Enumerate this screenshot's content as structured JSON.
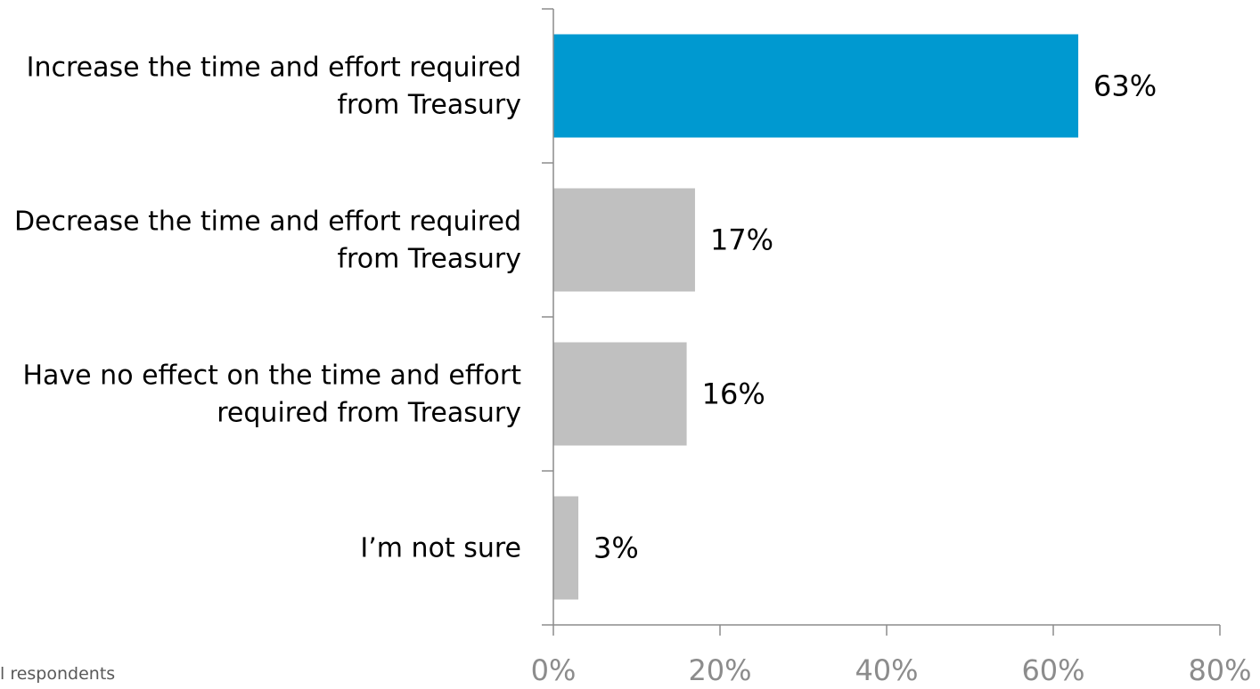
{
  "chart_data": {
    "type": "bar",
    "orientation": "horizontal",
    "categories": [
      [
        "Increase the time and effort required",
        "from Treasury"
      ],
      [
        "Decrease the time and effort required",
        "from Treasury"
      ],
      [
        "Have no effect on the time and effort",
        "required from Treasury"
      ],
      [
        "I’m not sure"
      ]
    ],
    "values": [
      63,
      17,
      16,
      3
    ],
    "data_labels": [
      "63%",
      "17%",
      "16%",
      "3%"
    ],
    "xlim": [
      0,
      80
    ],
    "x_ticks": [
      0,
      20,
      40,
      60,
      80
    ],
    "x_tick_labels": [
      "0%",
      "20%",
      "40%",
      "60%",
      "80%"
    ],
    "bar_colors": [
      "#0099d0",
      "#c0c0c0",
      "#c0c0c0",
      "#c0c0c0"
    ],
    "axis_color": "#8c8c8c",
    "grid": false,
    "legend": "none"
  },
  "footnote": "l respondents"
}
